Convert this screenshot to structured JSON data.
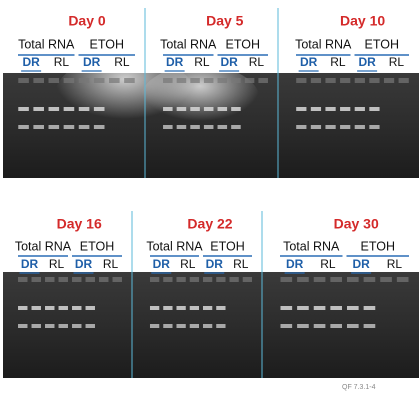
{
  "rows": [
    {
      "panels": [
        {
          "day": "Day 0",
          "groups": [
            "Total RNA",
            "ETOH"
          ],
          "lanes": [
            "DR",
            "RL",
            "DR",
            "RL"
          ]
        },
        {
          "day": "Day 5",
          "groups": [
            "Total RNA",
            "ETOH"
          ],
          "lanes": [
            "DR",
            "RL",
            "DR",
            "RL"
          ]
        },
        {
          "day": "Day 10",
          "groups": [
            "Total RNA",
            "ETOH"
          ],
          "lanes": [
            "DR",
            "RL",
            "DR",
            "RL"
          ]
        }
      ]
    },
    {
      "panels": [
        {
          "day": "Day 16",
          "groups": [
            "Total RNA",
            "ETOH"
          ],
          "lanes": [
            "DR",
            "RL",
            "DR",
            "RL"
          ]
        },
        {
          "day": "Day 22",
          "groups": [
            "Total RNA",
            "ETOH"
          ],
          "lanes": [
            "DR",
            "RL",
            "DR",
            "RL"
          ]
        },
        {
          "day": "Day 30",
          "groups": [
            "Total RNA",
            "ETOH"
          ],
          "lanes": [
            "DR",
            "RL",
            "DR",
            "RL"
          ]
        }
      ]
    }
  ],
  "footer": "QF 7.3.1-4"
}
